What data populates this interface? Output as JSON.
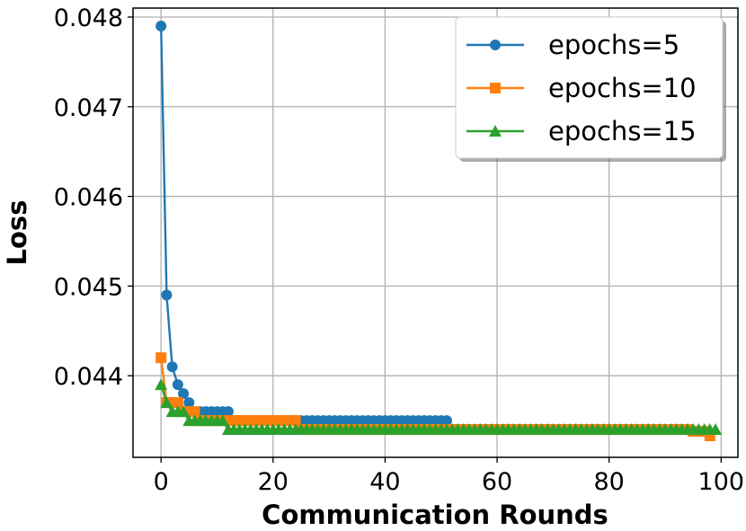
{
  "chart_data": {
    "type": "line",
    "xlabel": "Communication Rounds",
    "ylabel": "Loss",
    "xlim": [
      -5,
      103
    ],
    "ylim": [
      0.04309,
      0.0481
    ],
    "xticks": [
      0,
      20,
      40,
      60,
      80,
      100
    ],
    "xtick_labels": [
      "0",
      "20",
      "40",
      "60",
      "80",
      "100"
    ],
    "yticks": [
      0.044,
      0.045,
      0.046,
      0.047,
      0.048
    ],
    "ytick_labels": [
      "0.044",
      "0.045",
      "0.046",
      "0.047",
      "0.048"
    ],
    "grid": true,
    "legend_position": "top-right",
    "series": [
      {
        "name": "epochs=5",
        "color": "#1f77b4",
        "marker": "circle",
        "x": [
          0,
          1,
          2,
          3,
          4,
          5,
          6,
          7,
          8,
          9,
          10,
          11,
          12,
          13,
          14,
          15,
          16,
          17,
          18,
          19,
          20,
          21,
          22,
          23,
          24,
          25,
          26,
          27,
          28,
          29,
          30,
          31,
          32,
          33,
          34,
          35,
          36,
          37,
          38,
          39,
          40,
          41,
          42,
          43,
          44,
          45,
          46,
          47,
          48,
          49,
          50,
          51
        ],
        "values": [
          0.0479,
          0.0449,
          0.0441,
          0.0439,
          0.0438,
          0.0437,
          0.0436,
          0.0436,
          0.0436,
          0.0436,
          0.0436,
          0.0436,
          0.0436,
          0.0435,
          0.0435,
          0.0435,
          0.0435,
          0.0435,
          0.0435,
          0.0435,
          0.0435,
          0.0435,
          0.0435,
          0.0435,
          0.0435,
          0.0435,
          0.0435,
          0.0435,
          0.0435,
          0.0435,
          0.0435,
          0.0435,
          0.0435,
          0.0435,
          0.0435,
          0.0435,
          0.0435,
          0.0435,
          0.0435,
          0.0435,
          0.0435,
          0.0435,
          0.0435,
          0.0435,
          0.0435,
          0.0435,
          0.0435,
          0.0435,
          0.0435,
          0.0435,
          0.0435,
          0.0435
        ]
      },
      {
        "name": "epochs=10",
        "color": "#ff7f0e",
        "marker": "square",
        "x": [
          0,
          1,
          2,
          3,
          4,
          5,
          6,
          7,
          8,
          9,
          10,
          11,
          12,
          13,
          14,
          15,
          16,
          17,
          18,
          19,
          20,
          21,
          22,
          23,
          24,
          25,
          26,
          27,
          28,
          29,
          30,
          31,
          32,
          33,
          34,
          35,
          36,
          37,
          38,
          39,
          40,
          41,
          42,
          43,
          44,
          45,
          46,
          47,
          48,
          49,
          50,
          51,
          52,
          53,
          54,
          55,
          56,
          57,
          58,
          59,
          60,
          61,
          62,
          63,
          64,
          65,
          66,
          67,
          68,
          69,
          70,
          71,
          72,
          73,
          74,
          75,
          76,
          77,
          78,
          79,
          80,
          81,
          82,
          83,
          84,
          85,
          86,
          87,
          88,
          89,
          90,
          91,
          92,
          93,
          94,
          95,
          96,
          97,
          98
        ],
        "values": [
          0.0442,
          0.0437,
          0.0437,
          0.0437,
          0.0436,
          0.0436,
          0.0436,
          0.0435,
          0.0435,
          0.0435,
          0.0435,
          0.0435,
          0.0435,
          0.0435,
          0.0435,
          0.0435,
          0.0435,
          0.0435,
          0.0435,
          0.0435,
          0.0435,
          0.0435,
          0.0435,
          0.0435,
          0.0435,
          0.0434,
          0.0434,
          0.0434,
          0.0434,
          0.0434,
          0.0434,
          0.0434,
          0.0434,
          0.0434,
          0.0434,
          0.0434,
          0.0434,
          0.0434,
          0.0434,
          0.0434,
          0.0434,
          0.0434,
          0.0434,
          0.0434,
          0.0434,
          0.0434,
          0.0434,
          0.0434,
          0.0434,
          0.0434,
          0.0434,
          0.0434,
          0.0434,
          0.0434,
          0.0434,
          0.0434,
          0.0434,
          0.0434,
          0.0434,
          0.0434,
          0.0434,
          0.0434,
          0.0434,
          0.0434,
          0.0434,
          0.0434,
          0.0434,
          0.0434,
          0.0434,
          0.0434,
          0.0434,
          0.0434,
          0.0434,
          0.0434,
          0.0434,
          0.0434,
          0.0434,
          0.0434,
          0.0434,
          0.0434,
          0.0434,
          0.0434,
          0.0434,
          0.0434,
          0.0434,
          0.0434,
          0.0434,
          0.0434,
          0.0434,
          0.0434,
          0.0434,
          0.0434,
          0.0434,
          0.0434,
          0.0434,
          0.04338,
          0.04338,
          0.04338,
          0.04333
        ]
      },
      {
        "name": "epochs=15",
        "color": "#2ca02c",
        "marker": "triangle",
        "x": [
          0,
          1,
          2,
          3,
          4,
          5,
          6,
          7,
          8,
          9,
          10,
          11,
          12,
          13,
          14,
          15,
          16,
          17,
          18,
          19,
          20,
          21,
          22,
          23,
          24,
          25,
          26,
          27,
          28,
          29,
          30,
          31,
          32,
          33,
          34,
          35,
          36,
          37,
          38,
          39,
          40,
          41,
          42,
          43,
          44,
          45,
          46,
          47,
          48,
          49,
          50,
          51,
          52,
          53,
          54,
          55,
          56,
          57,
          58,
          59,
          60,
          61,
          62,
          63,
          64,
          65,
          66,
          67,
          68,
          69,
          70,
          71,
          72,
          73,
          74,
          75,
          76,
          77,
          78,
          79,
          80,
          81,
          82,
          83,
          84,
          85,
          86,
          87,
          88,
          89,
          90,
          91,
          92,
          93,
          94,
          95,
          96,
          97,
          98,
          99
        ],
        "values": [
          0.0439,
          0.0437,
          0.0436,
          0.0436,
          0.0436,
          0.0435,
          0.0435,
          0.0435,
          0.0435,
          0.0435,
          0.0435,
          0.0435,
          0.0434,
          0.0434,
          0.0434,
          0.0434,
          0.0434,
          0.0434,
          0.0434,
          0.0434,
          0.0434,
          0.0434,
          0.0434,
          0.0434,
          0.0434,
          0.0434,
          0.0434,
          0.0434,
          0.0434,
          0.0434,
          0.0434,
          0.0434,
          0.0434,
          0.0434,
          0.0434,
          0.0434,
          0.0434,
          0.0434,
          0.0434,
          0.0434,
          0.0434,
          0.0434,
          0.0434,
          0.0434,
          0.0434,
          0.0434,
          0.0434,
          0.0434,
          0.0434,
          0.0434,
          0.0434,
          0.0434,
          0.0434,
          0.0434,
          0.0434,
          0.0434,
          0.0434,
          0.0434,
          0.0434,
          0.0434,
          0.0434,
          0.0434,
          0.0434,
          0.0434,
          0.0434,
          0.0434,
          0.0434,
          0.0434,
          0.0434,
          0.0434,
          0.0434,
          0.0434,
          0.0434,
          0.0434,
          0.0434,
          0.0434,
          0.0434,
          0.0434,
          0.0434,
          0.0434,
          0.0434,
          0.0434,
          0.0434,
          0.0434,
          0.0434,
          0.0434,
          0.0434,
          0.0434,
          0.0434,
          0.0434,
          0.0434,
          0.0434,
          0.0434,
          0.0434,
          0.0434,
          0.0434,
          0.0434,
          0.0434,
          0.0434,
          0.0434
        ]
      }
    ]
  }
}
